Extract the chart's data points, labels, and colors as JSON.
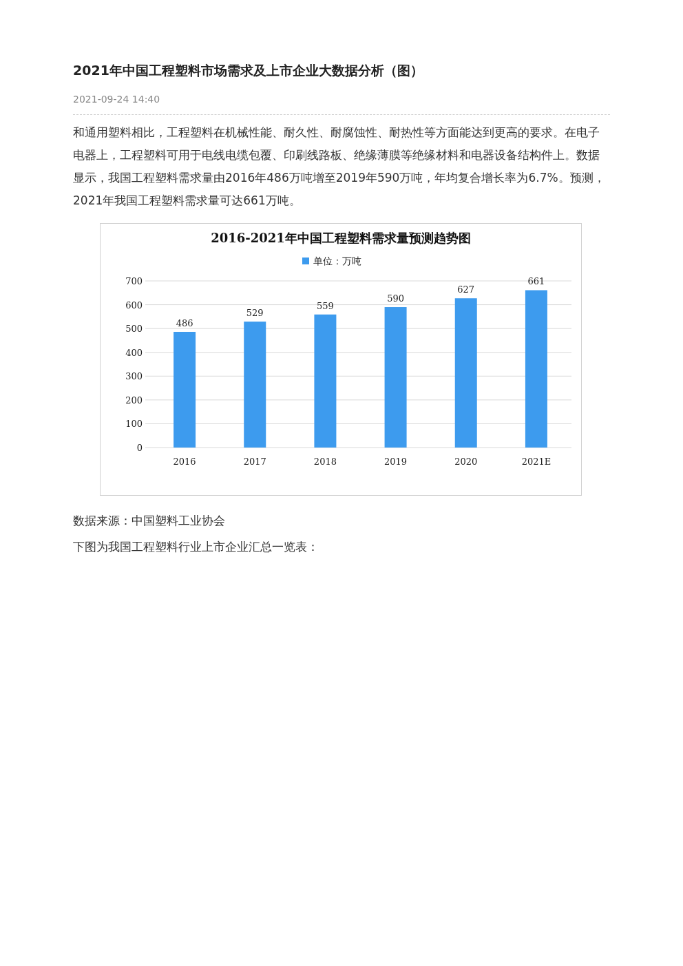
{
  "chart_data": {
    "type": "bar",
    "title": "2016-2021年中国工程塑料需求量预测趋势图",
    "categories": [
      "2016",
      "2017",
      "2018",
      "2019",
      "2020",
      "2021E"
    ],
    "series": [
      {
        "name": "单位：万吨",
        "color": "#3d9bee",
        "values": [
          486,
          529,
          559,
          590,
          627,
          661
        ]
      }
    ],
    "ylim": [
      0,
      700
    ],
    "yticks": [
      0,
      100,
      200,
      300,
      400,
      500,
      600,
      700
    ],
    "grid": "y",
    "legend": "top",
    "data_labels": true,
    "annotations": [
      "2021年中国工程塑料市场需求及上市企业大数据分析（图）",
      "2021-09-24 14:40",
      "和通用塑料相比，工程塑料在机械性能、耐久性、耐腐蚀性、耐热性等方面能达到更高的要求。在电子电器上，工程塑料可用于电线电缆包覆、印刷线路板、绝缘薄膜等绝缘材料和电器设备结构件上。数据显示，我国工程塑料需求量由2016年486万吨增至2019年590万吨，年均复合增长率为6.7%。预测，2021年我国工程塑料需求量可达661万吨。",
      "数据来源：中国塑料工业协会",
      "下图为我国工程塑料行业上市企业汇总一览表："
    ]
  }
}
